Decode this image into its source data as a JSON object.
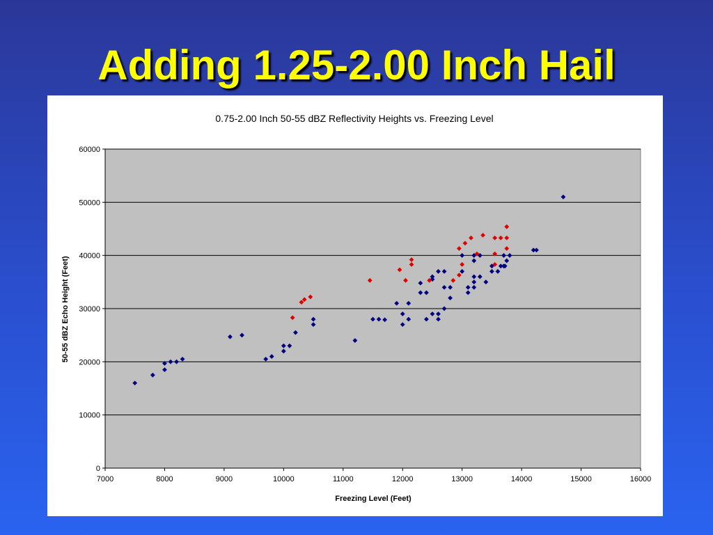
{
  "slide": {
    "title": "Adding 1.25-2.00 Inch Hail"
  },
  "chart_data": {
    "type": "scatter",
    "title": "0.75-2.00 Inch 50-55 dBZ  Reflectivity Heights vs. Freezing Level",
    "xlabel": "Freezing Level (Feet)",
    "ylabel": "50-55 dBZ Echo Height (Feet)",
    "xlim": [
      7000,
      16000
    ],
    "ylim": [
      0,
      60000
    ],
    "x_ticks": [
      7000,
      8000,
      9000,
      10000,
      11000,
      12000,
      13000,
      14000,
      15000,
      16000
    ],
    "y_ticks": [
      0,
      10000,
      20000,
      30000,
      40000,
      50000,
      60000
    ],
    "grid": "horizontal",
    "plot_background": "#c0c0c0",
    "legend": "none",
    "series": [
      {
        "color": "#000080",
        "points": [
          [
            7500,
            16000
          ],
          [
            7800,
            17500
          ],
          [
            8000,
            18500
          ],
          [
            8000,
            19700
          ],
          [
            8100,
            20000
          ],
          [
            8200,
            20000
          ],
          [
            8300,
            20500
          ],
          [
            9100,
            24700
          ],
          [
            9300,
            25000
          ],
          [
            9700,
            20500
          ],
          [
            9800,
            21000
          ],
          [
            10000,
            22000
          ],
          [
            10000,
            23000
          ],
          [
            10100,
            23000
          ],
          [
            10200,
            25500
          ],
          [
            10500,
            28000
          ],
          [
            10500,
            27000
          ],
          [
            11200,
            24000
          ],
          [
            11500,
            28000
          ],
          [
            11600,
            28000
          ],
          [
            11700,
            27900
          ],
          [
            11900,
            31000
          ],
          [
            12000,
            27000
          ],
          [
            12000,
            29000
          ],
          [
            12100,
            31000
          ],
          [
            12100,
            28000
          ],
          [
            12300,
            33000
          ],
          [
            12300,
            34800
          ],
          [
            12400,
            33000
          ],
          [
            12400,
            28000
          ],
          [
            12500,
            29000
          ],
          [
            12500,
            35500
          ],
          [
            12500,
            36000
          ],
          [
            12600,
            37000
          ],
          [
            12600,
            28000
          ],
          [
            12600,
            29000
          ],
          [
            12700,
            37000
          ],
          [
            12700,
            34000
          ],
          [
            12700,
            30000
          ],
          [
            12800,
            34000
          ],
          [
            12800,
            32000
          ],
          [
            13000,
            40000
          ],
          [
            13000,
            37000
          ],
          [
            13100,
            33000
          ],
          [
            13100,
            34000
          ],
          [
            13200,
            40000
          ],
          [
            13200,
            39000
          ],
          [
            13200,
            36000
          ],
          [
            13200,
            35000
          ],
          [
            13200,
            34000
          ],
          [
            13300,
            40000
          ],
          [
            13300,
            36000
          ],
          [
            13400,
            35000
          ],
          [
            13500,
            37000
          ],
          [
            13500,
            38000
          ],
          [
            13600,
            37000
          ],
          [
            13650,
            38000
          ],
          [
            13700,
            38000
          ],
          [
            13700,
            40000
          ],
          [
            13720,
            38000
          ],
          [
            13750,
            39000
          ],
          [
            13800,
            40000
          ],
          [
            14200,
            41000
          ],
          [
            14250,
            41000
          ],
          [
            14700,
            51000
          ]
        ]
      },
      {
        "color": "#e00000",
        "points": [
          [
            10150,
            28300
          ],
          [
            10300,
            31200
          ],
          [
            10350,
            31700
          ],
          [
            10450,
            32200
          ],
          [
            11450,
            35300
          ],
          [
            11950,
            37300
          ],
          [
            12050,
            35300
          ],
          [
            12150,
            38300
          ],
          [
            12150,
            39200
          ],
          [
            12450,
            35300
          ],
          [
            12850,
            35300
          ],
          [
            12950,
            36300
          ],
          [
            12950,
            41300
          ],
          [
            13000,
            38300
          ],
          [
            13050,
            42300
          ],
          [
            13150,
            43300
          ],
          [
            13250,
            40300
          ],
          [
            13350,
            43800
          ],
          [
            13550,
            40300
          ],
          [
            13550,
            43300
          ],
          [
            13550,
            38300
          ],
          [
            13650,
            43300
          ],
          [
            13750,
            41300
          ],
          [
            13750,
            43300
          ],
          [
            13750,
            45400
          ]
        ]
      }
    ]
  }
}
